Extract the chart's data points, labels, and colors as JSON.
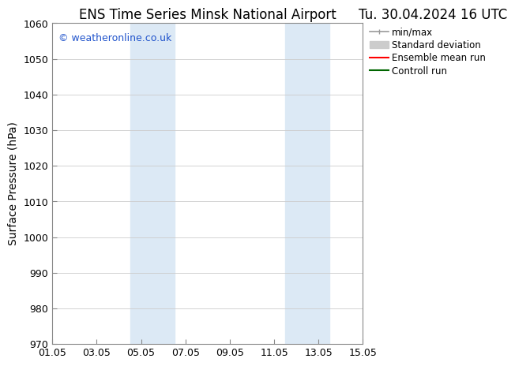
{
  "title_left": "ENS Time Series Minsk National Airport",
  "title_right": "Tu. 30.04.2024 16 UTC",
  "ylabel": "Surface Pressure (hPa)",
  "ylim": [
    970,
    1060
  ],
  "yticks": [
    970,
    980,
    990,
    1000,
    1010,
    1020,
    1030,
    1040,
    1050,
    1060
  ],
  "xlim_start": 0,
  "xlim_end": 14,
  "xtick_labels": [
    "01.05",
    "03.05",
    "05.05",
    "07.05",
    "09.05",
    "11.05",
    "13.05",
    "15.05"
  ],
  "xtick_positions": [
    0,
    2,
    4,
    6,
    8,
    10,
    12,
    14
  ],
  "shaded_bands": [
    {
      "xmin": 3.5,
      "xmax": 5.5
    },
    {
      "xmin": 10.5,
      "xmax": 12.5
    }
  ],
  "shaded_color": "#dce9f5",
  "watermark_text": "© weatheronline.co.uk",
  "watermark_color": "#2255cc",
  "background_color": "#ffffff",
  "grid_color": "#cccccc",
  "legend_entries": [
    {
      "label": "min/max",
      "color": "#999999",
      "lw": 1.2,
      "style": "line_with_caps"
    },
    {
      "label": "Standard deviation",
      "color": "#cccccc",
      "lw": 7,
      "style": "band"
    },
    {
      "label": "Ensemble mean run",
      "color": "#ff0000",
      "lw": 1.5,
      "style": "line"
    },
    {
      "label": "Controll run",
      "color": "#006600",
      "lw": 1.5,
      "style": "line"
    }
  ],
  "title_fontsize": 12,
  "axis_label_fontsize": 10,
  "tick_fontsize": 9,
  "legend_fontsize": 8.5
}
